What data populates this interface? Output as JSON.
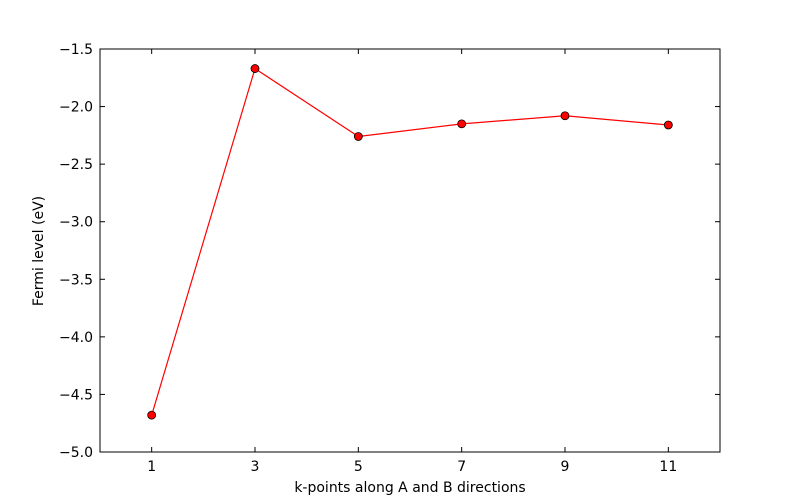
{
  "chart_data": {
    "type": "line",
    "title": "",
    "xlabel": "k-points along A and B directions",
    "ylabel": "Fermi level (eV)",
    "x": [
      1,
      3,
      5,
      7,
      9,
      11
    ],
    "series": [
      {
        "values": [
          -4.68,
          -1.67,
          -2.26,
          -2.15,
          -2.08,
          -2.16
        ],
        "color": "#ff0000",
        "marker": "circle"
      }
    ],
    "xlim": [
      0,
      12
    ],
    "ylim": [
      -5.0,
      -1.5
    ],
    "xticks": [
      1,
      3,
      5,
      7,
      9,
      11
    ],
    "xtick_labels": [
      "1",
      "3",
      "5",
      "7",
      "9",
      "11"
    ],
    "yticks": [
      -5.0,
      -4.5,
      -4.0,
      -3.5,
      -3.0,
      -2.5,
      -2.0,
      -1.5
    ],
    "ytick_labels": [
      "−5.0",
      "−4.5",
      "−4.0",
      "−3.5",
      "−3.0",
      "−2.5",
      "−2.0",
      "−1.5"
    ],
    "grid": false,
    "legend": "none"
  }
}
